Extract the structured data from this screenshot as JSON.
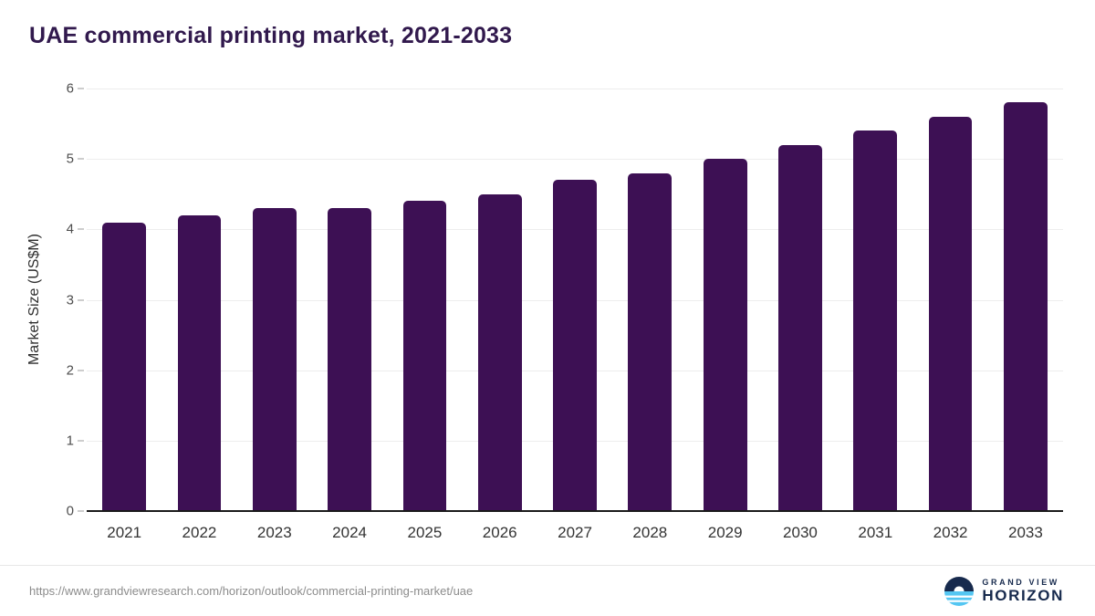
{
  "chart_data": {
    "type": "bar",
    "title": "UAE commercial printing market, 2021-2033",
    "xlabel": "",
    "ylabel": "Market Size (US$M)",
    "categories": [
      "2021",
      "2022",
      "2023",
      "2024",
      "2025",
      "2026",
      "2027",
      "2028",
      "2029",
      "2030",
      "2031",
      "2032",
      "2033"
    ],
    "values": [
      4.1,
      4.2,
      4.3,
      4.3,
      4.4,
      4.5,
      4.7,
      4.8,
      5.0,
      5.2,
      5.4,
      5.6,
      5.8
    ],
    "ylim": [
      0,
      6
    ],
    "yticks": [
      0,
      1,
      2,
      3,
      4,
      5,
      6
    ],
    "bar_color": "#3d1054",
    "grid": true,
    "legend": false
  },
  "footer": {
    "source_url": "https://www.grandviewresearch.com/horizon/outlook/commercial-printing-market/uae",
    "brand_top": "GRAND VIEW",
    "brand_bottom": "HORIZON"
  },
  "colors": {
    "title": "#31194d",
    "bar": "#3d1054",
    "axis_line": "#1a1a1a",
    "gridline": "#ededed",
    "brand_navy": "#172a4d",
    "brand_light_blue": "#54c6f2"
  }
}
